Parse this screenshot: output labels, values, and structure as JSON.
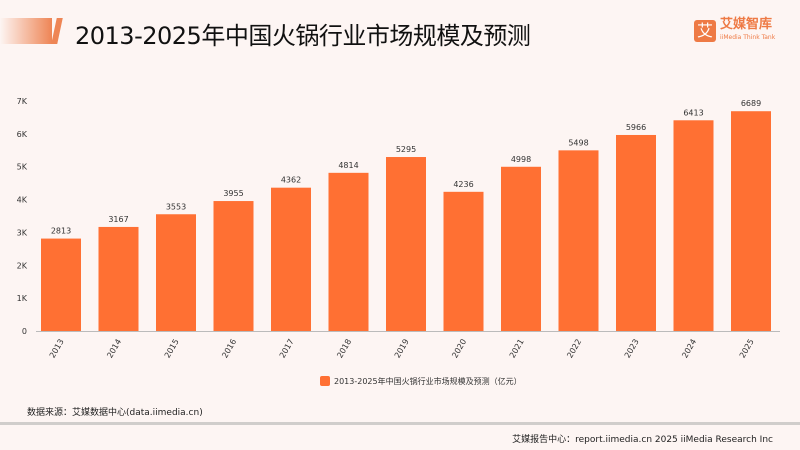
{
  "title": "2013-2025年中国火锅行业市场规模及预测",
  "logo": {
    "mark": "艾",
    "name": "艾媒智库",
    "sub": "iiMedia Think Tank"
  },
  "source": "数据来源：艾媒数据中心(data.iimedia.cn)",
  "footer": "艾媒报告中心：report.iimedia.cn   2025 iiMedia Research Inc",
  "chart_data": {
    "type": "bar",
    "categories": [
      "2013",
      "2014",
      "2015",
      "2016",
      "2017",
      "2018",
      "2019",
      "2020",
      "2021",
      "2022",
      "2023",
      "2024",
      "2025"
    ],
    "series": [
      {
        "name": "2013-2025年中国火锅行业市场规模及预测（亿元）",
        "values": [
          2813,
          3167,
          3553,
          3955,
          4362,
          4814,
          5295,
          4236,
          4998,
          5498,
          5966,
          6413,
          6689
        ]
      }
    ],
    "ylim": [
      0,
      7000
    ],
    "yticks": [
      "0",
      "1K",
      "2K",
      "3K",
      "4K",
      "5K",
      "6K",
      "7K"
    ],
    "grid": false,
    "legend": "bottom-center",
    "color": "#ff7033"
  }
}
